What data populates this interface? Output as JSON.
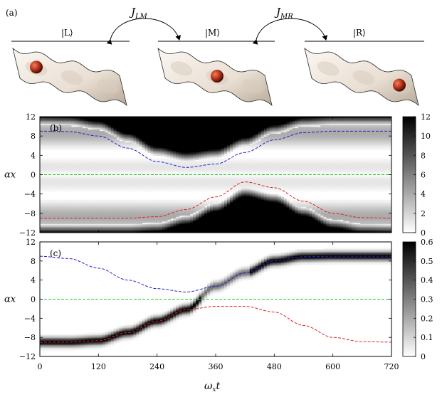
{
  "panel_a": {
    "label": "(a)",
    "states": [
      "|L⟩",
      "|M⟩",
      "|R⟩"
    ],
    "couplings": [
      {
        "text": "J",
        "sub": "LM"
      },
      {
        "text": "J",
        "sub": "MR"
      }
    ],
    "ball_well_index": [
      1,
      2,
      3
    ]
  },
  "colors": {
    "blue_curve": "#2222cc",
    "red_curve": "#dd2222",
    "green_line": "#22cc22",
    "ball": "#b8301a",
    "surface": "#eee6dc"
  },
  "chart_data": [
    {
      "type": "heatmap",
      "panel_label": "(b)",
      "ylabel": "αx",
      "xlabel": "",
      "x_range": [
        0,
        720
      ],
      "y_range": [
        -12,
        12
      ],
      "y_ticks": [
        12,
        8,
        4,
        0,
        -4,
        -8,
        -12
      ],
      "colorbar_ticks": [
        12,
        10,
        8,
        6,
        4,
        2,
        0
      ],
      "colorbar_range": [
        0,
        12
      ],
      "colormap": "white-to-black",
      "curves": [
        {
          "color": "blue",
          "style": "dashed",
          "x": [
            0,
            60,
            120,
            180,
            240,
            300,
            360,
            420,
            480,
            540,
            600,
            660,
            720
          ],
          "y": [
            9,
            8.9,
            8.0,
            5.5,
            2.7,
            1.5,
            2.2,
            4.6,
            7.2,
            8.7,
            9.0,
            9.0,
            9.0
          ]
        },
        {
          "color": "green",
          "style": "dashed",
          "x": [
            0,
            720
          ],
          "y": [
            0,
            0
          ]
        },
        {
          "color": "red",
          "style": "dashed",
          "x": [
            0,
            60,
            120,
            180,
            240,
            300,
            360,
            420,
            480,
            540,
            600,
            660,
            720
          ],
          "y": [
            -9,
            -9,
            -9,
            -9,
            -8.7,
            -7.2,
            -4.6,
            -1.5,
            -2.7,
            -5.5,
            -8.0,
            -8.9,
            -9.0
          ]
        }
      ]
    },
    {
      "type": "heatmap",
      "panel_label": "(c)",
      "ylabel": "αx",
      "xlabel": "ω_x t",
      "x_range": [
        0,
        720
      ],
      "x_ticks": [
        0,
        120,
        240,
        360,
        480,
        600,
        720
      ],
      "y_range": [
        -12,
        12
      ],
      "y_ticks": [
        12,
        8,
        4,
        0,
        -4,
        -8,
        -12
      ],
      "colorbar_ticks": [
        0.6,
        0.5,
        0.4,
        0.3,
        0.2,
        0.1,
        0
      ],
      "colorbar_range": [
        0,
        0.6
      ],
      "colormap": "white-to-black",
      "curves": [
        {
          "color": "blue",
          "style": "dashed",
          "x": [
            0,
            60,
            120,
            180,
            240,
            300,
            360,
            420,
            480,
            540,
            600,
            660,
            720
          ],
          "y": [
            9,
            8.5,
            6.5,
            4.0,
            2.2,
            1.5,
            2.7,
            5.5,
            8.0,
            8.9,
            9.0,
            9.0,
            9.0
          ]
        },
        {
          "color": "green",
          "style": "dashed",
          "x": [
            0,
            720
          ],
          "y": [
            0,
            0
          ]
        },
        {
          "color": "red",
          "style": "dashed",
          "x": [
            0,
            60,
            120,
            180,
            240,
            300,
            360,
            420,
            480,
            540,
            600,
            660,
            720
          ],
          "y": [
            -9,
            -9,
            -8.7,
            -7.0,
            -4.6,
            -2.2,
            -1.5,
            -1.5,
            -2.7,
            -5.5,
            -8.0,
            -8.9,
            -9.0
          ]
        }
      ],
      "density_track": {
        "x": [
          0,
          60,
          120,
          180,
          240,
          300,
          360,
          420,
          480,
          540,
          600,
          660,
          720
        ],
        "y": [
          -9,
          -9,
          -8.7,
          -7.0,
          -4.6,
          -2.2,
          2.7,
          5.5,
          8.0,
          8.9,
          9.0,
          9.0,
          9.0
        ]
      }
    }
  ]
}
